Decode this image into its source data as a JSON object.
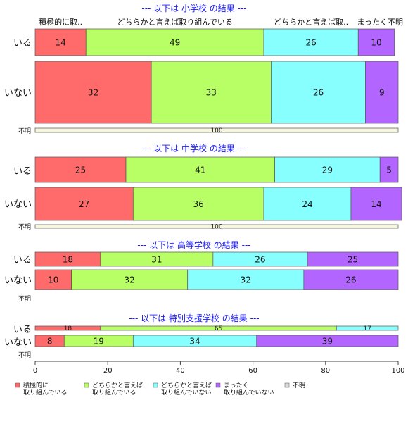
{
  "chart_data": {
    "type": "bar",
    "stacked": true,
    "orientation": "horizontal",
    "xlim": [
      0,
      100
    ],
    "xticks": [
      "0",
      "20",
      "40",
      "60",
      "80",
      "100"
    ],
    "column_headers": [
      "積極的に取..",
      "どちらかと言えば取り組んでいる",
      "どちらかと言えば取..",
      "まったく不明"
    ],
    "legend": [
      {
        "line1": "積極的に",
        "line2": "取り組んでいる",
        "color": "#ff6b6b"
      },
      {
        "line1": "どちらかと言えば",
        "line2": "取り組んでいる",
        "color": "#b8ff66"
      },
      {
        "line1": "どちらかと言えば",
        "line2": "取り組んでいない",
        "color": "#88ffff"
      },
      {
        "line1": "まったく",
        "line2": "取り組んでいない",
        "color": "#b366ff"
      },
      {
        "line1": "不明",
        "line2": "",
        "color": "#d9d9d9"
      }
    ],
    "panels": [
      {
        "title": "--- 以下は 小学校 の結果 ---",
        "rows": [
          {
            "label": "いる",
            "values": [
              14,
              49,
              26,
              10
            ]
          },
          {
            "label": "いない",
            "values": [
              32,
              33,
              26,
              9
            ]
          },
          {
            "label": "不明",
            "values": [
              0,
              0,
              0,
              0,
              100
            ]
          }
        ]
      },
      {
        "title": "--- 以下は 中学校 の結果 ---",
        "rows": [
          {
            "label": "いる",
            "values": [
              25,
              41,
              29,
              5
            ]
          },
          {
            "label": "いない",
            "values": [
              27,
              36,
              24,
              14
            ]
          },
          {
            "label": "不明",
            "values": [
              0,
              0,
              0,
              0,
              100
            ]
          }
        ]
      },
      {
        "title": "--- 以下は 高等学校 の結果 ---",
        "rows": [
          {
            "label": "いる",
            "values": [
              18,
              31,
              26,
              25
            ]
          },
          {
            "label": "いない",
            "values": [
              10,
              32,
              32,
              26
            ]
          },
          {
            "label": "不明",
            "values": []
          }
        ]
      },
      {
        "title": "--- 以下は 特別支援学校 の結果 ---",
        "rows": [
          {
            "label": "いる",
            "values": [
              18,
              65,
              17
            ]
          },
          {
            "label": "いない",
            "values": [
              8,
              19,
              34,
              39
            ]
          },
          {
            "label": "不明",
            "values": []
          }
        ]
      }
    ]
  }
}
